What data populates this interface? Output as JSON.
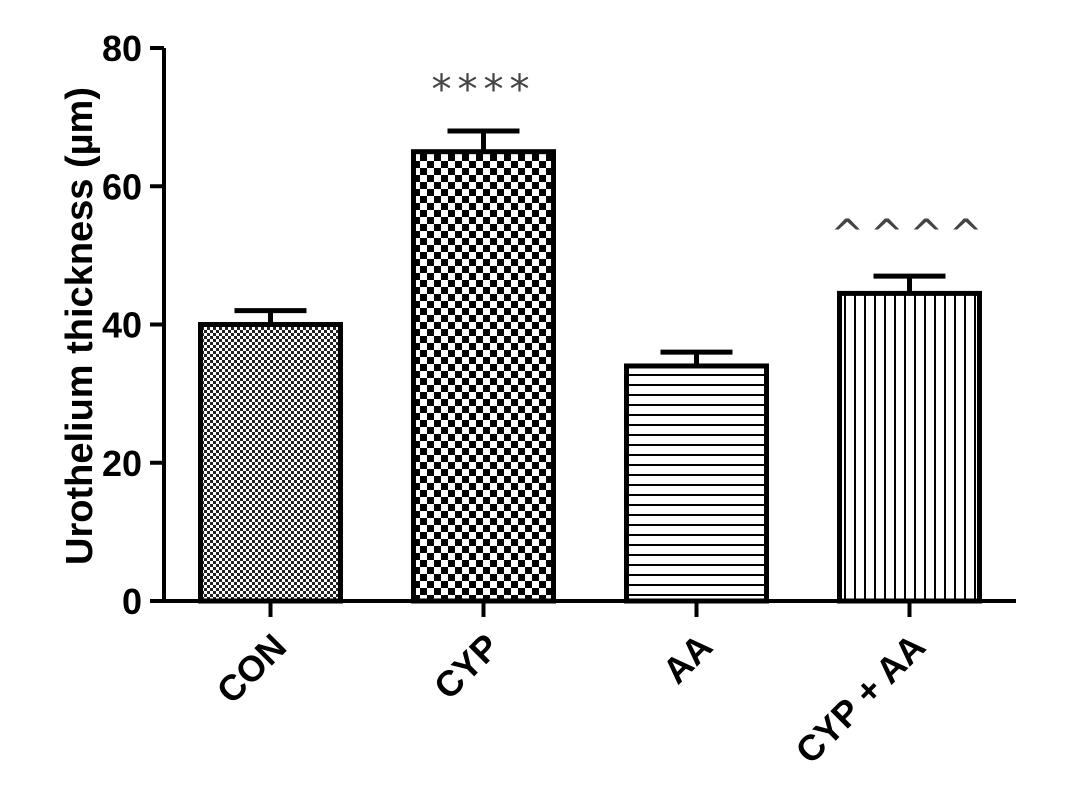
{
  "chart_data": {
    "type": "bar",
    "title": "",
    "xlabel": "",
    "ylabel": "Urothelium thickness (µm)",
    "ylim": [
      0,
      80
    ],
    "yticks": [
      0,
      20,
      40,
      60,
      80
    ],
    "grid": false,
    "categories": [
      "CON",
      "CYP",
      "AA",
      "CYP + AA"
    ],
    "values": [
      40,
      65,
      34,
      44.5
    ],
    "errors": [
      2,
      3,
      2,
      2.5
    ],
    "patterns": [
      "fine-dots",
      "checkerboard",
      "horizontal-lines",
      "vertical-lines"
    ],
    "annotations": [
      {
        "category": "CYP",
        "text": "****"
      },
      {
        "category": "CYP + AA",
        "text": "^^^^"
      }
    ],
    "colors": {
      "stroke": "#000000",
      "fill": "#ffffff",
      "annotation": "#444444"
    }
  }
}
